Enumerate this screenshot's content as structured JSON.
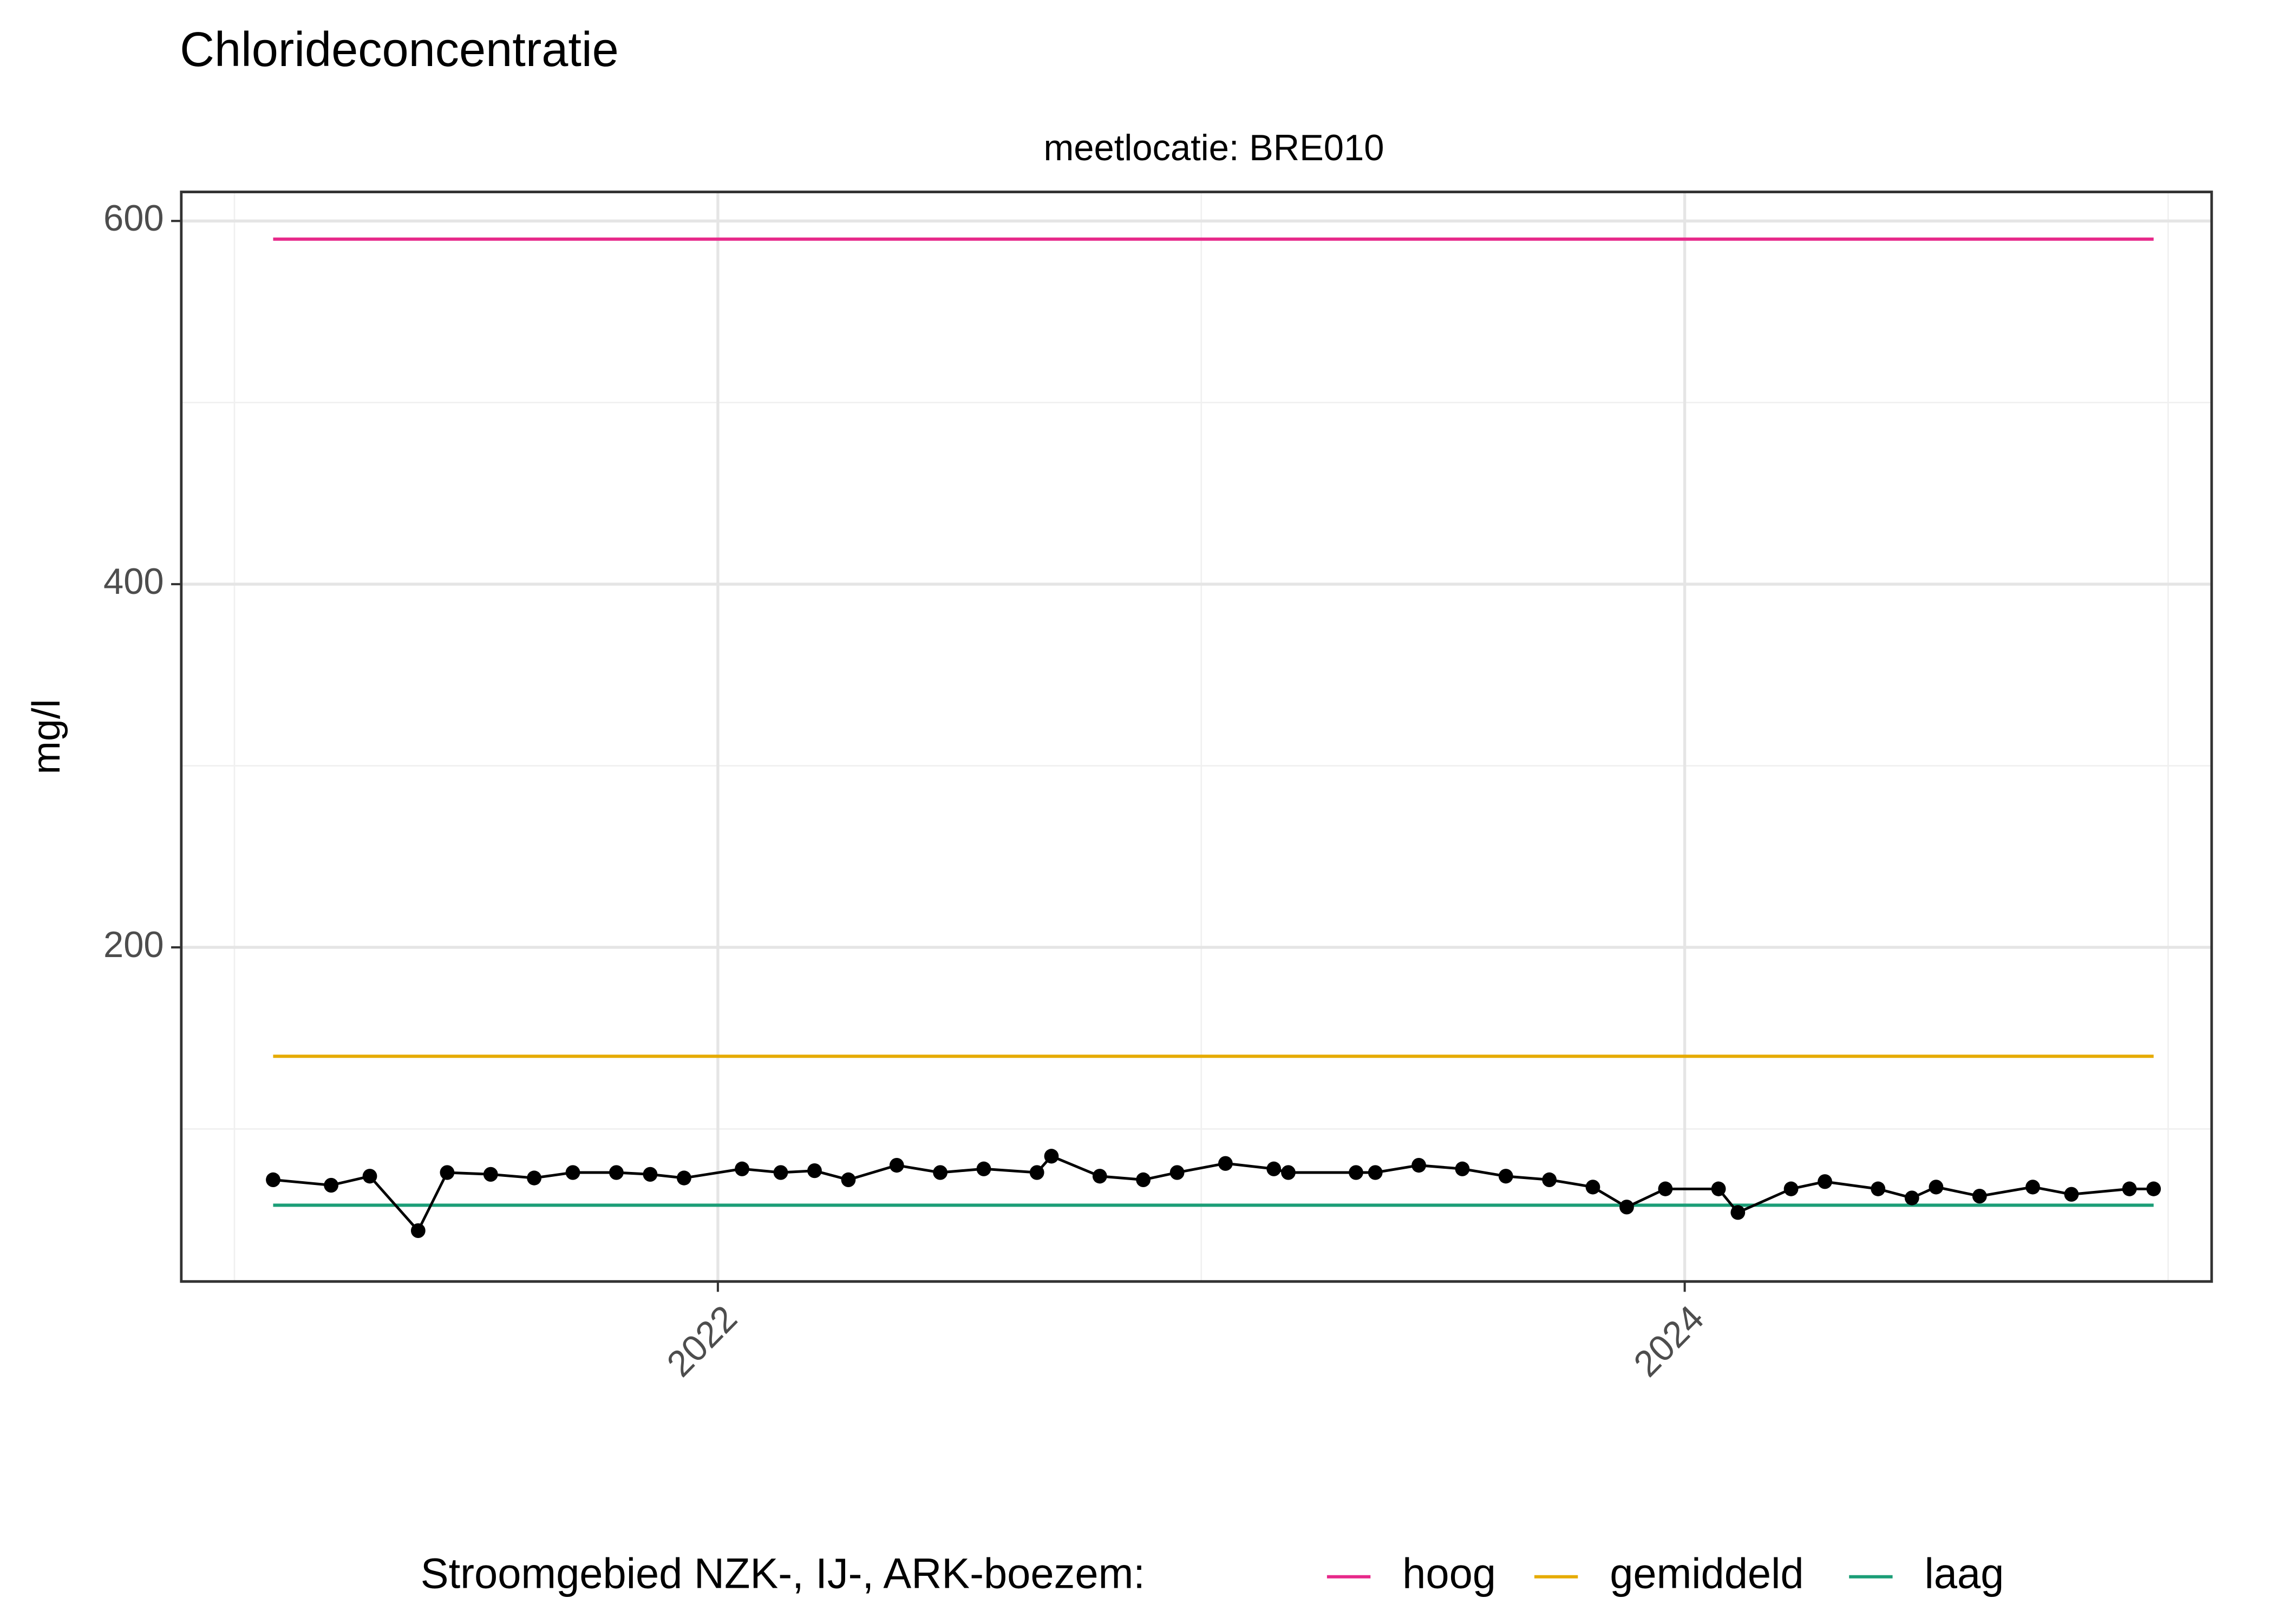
{
  "chart_data": {
    "type": "line",
    "title": "Chlorideconcentratie",
    "subtitle": "meetlocatie: BRE010",
    "y_label": "mg/l",
    "x": [
      2021.08,
      2021.2,
      2021.28,
      2021.38,
      2021.44,
      2021.53,
      2021.62,
      2021.7,
      2021.79,
      2021.86,
      2021.93,
      2022.05,
      2022.13,
      2022.2,
      2022.27,
      2022.37,
      2022.46,
      2022.55,
      2022.66,
      2022.69,
      2022.79,
      2022.88,
      2022.95,
      2023.05,
      2023.15,
      2023.18,
      2023.32,
      2023.36,
      2023.45,
      2023.54,
      2023.63,
      2023.72,
      2023.81,
      2023.88,
      2023.96,
      2024.07,
      2024.11,
      2024.22,
      2024.29,
      2024.4,
      2024.47,
      2024.52,
      2024.61,
      2024.72,
      2024.8,
      2024.92,
      2024.97
    ],
    "values": [
      72,
      69,
      74,
      44,
      76,
      75,
      73,
      76,
      76,
      75,
      73,
      78,
      76,
      77,
      72,
      80,
      76,
      78,
      76,
      85,
      74,
      72,
      76,
      81,
      78,
      76,
      76,
      76,
      80,
      78,
      74,
      72,
      68,
      57,
      67,
      67,
      54,
      67,
      71,
      67,
      62,
      68,
      63,
      68,
      64,
      67,
      67
    ],
    "color": "#000000",
    "legend_title": "Stroomgebied NZK-, IJ-, ARK-boezem:",
    "legend_position": "bottom",
    "reference_xlim": [
      2021.08,
      2024.97
    ],
    "reference_lines": [
      {
        "name": "hoog",
        "color": "#e7298a",
        "value": 590
      },
      {
        "name": "gemiddeld",
        "color": "#e6ab02",
        "value": 140
      },
      {
        "name": "laag",
        "color": "#1b9e77",
        "value": 58
      }
    ],
    "xlim": [
      2020.89,
      2025.09
    ],
    "xticks": [
      2022,
      2024
    ],
    "x_minor_ticks": [
      2021,
      2023,
      2025
    ],
    "ylim": [
      16,
      616
    ],
    "yticks": [
      200,
      400,
      600
    ],
    "y_minor_ticks": [
      100,
      300,
      500
    ],
    "grid": true
  }
}
